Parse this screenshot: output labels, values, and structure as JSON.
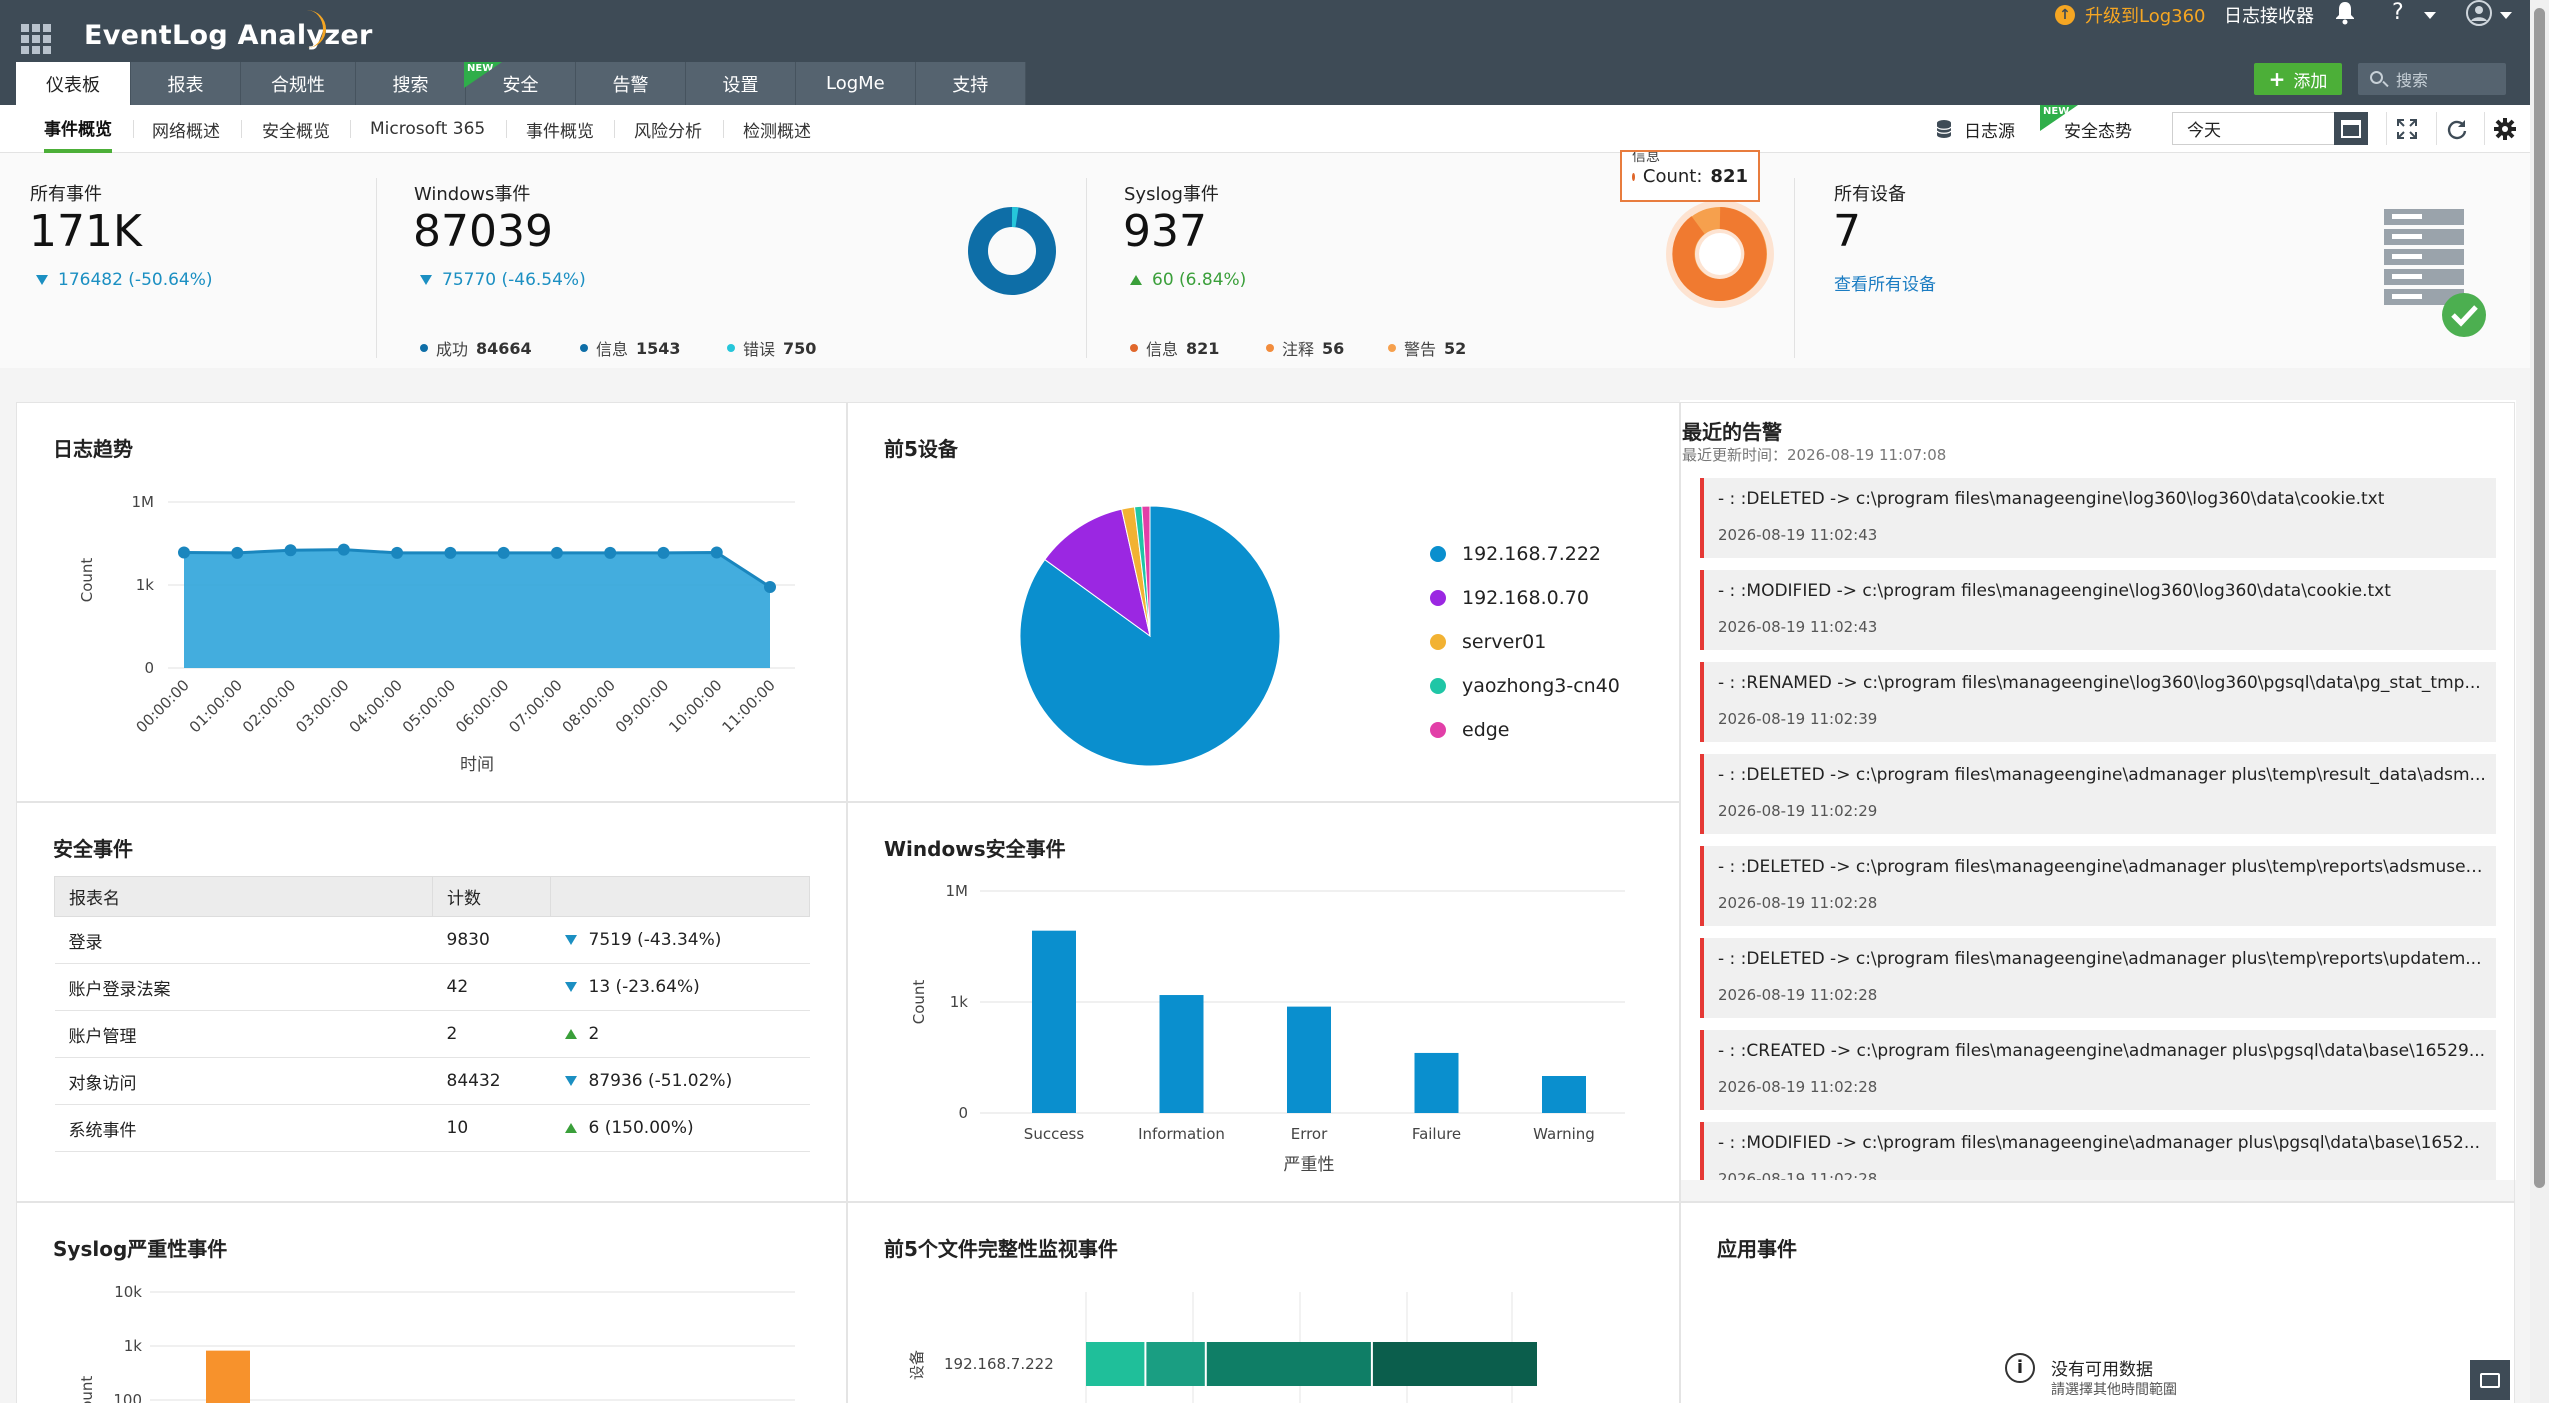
{
  "app": {
    "brand": "EventLog Analyzer",
    "upgrade": "升级到Log360",
    "collector": "日志接收器",
    "help": "?"
  },
  "nav": {
    "tabs": [
      "仪表板",
      "报表",
      "合规性",
      "搜索",
      "安全",
      "告警",
      "设置",
      "LogMe",
      "支持"
    ],
    "new_badge": "NEW",
    "add_label": "添加",
    "search_placeholder": "搜索"
  },
  "subnav": {
    "tabs": [
      "事件概览",
      "网络概述",
      "安全概览",
      "Microsoft 365",
      "事件概览",
      "风险分析",
      "检测概述"
    ],
    "log_source": "日志源",
    "security_posture": "安全态势",
    "new_badge": "NEW",
    "date_value": "今天"
  },
  "summary": {
    "all_events": {
      "title": "所有事件",
      "value": "171K",
      "delta": "176482 (-50.64%)"
    },
    "windows": {
      "title": "Windows事件",
      "value": "87039",
      "delta": "75770 (-46.54%)",
      "legend": [
        {
          "label": "成功",
          "value": "84664",
          "color": "#0e6ea7"
        },
        {
          "label": "信息",
          "value": "1543",
          "color": "#0e6ea7"
        },
        {
          "label": "错误",
          "value": "750",
          "color": "#26c6da"
        }
      ]
    },
    "syslog": {
      "title": "Syslog事件",
      "value": "937",
      "delta": "60 (6.84%)",
      "legend": [
        {
          "label": "信息",
          "value": "821",
          "color": "#e0672b"
        },
        {
          "label": "注释",
          "value": "56",
          "color": "#f28c3c"
        },
        {
          "label": "警告",
          "value": "52",
          "color": "#f6a04d"
        }
      ],
      "tooltip_title": "信息",
      "tooltip_label": "Count:",
      "tooltip_value": "821"
    },
    "devices": {
      "title": "所有设备",
      "value": "7",
      "link": "查看所有设备"
    }
  },
  "log_trend": {
    "title": "日志趋势",
    "ylabel": "Count",
    "xlabel": "时间",
    "yticks": [
      "1M",
      "1k",
      "0"
    ],
    "chart_data": {
      "type": "area",
      "x": [
        "00:00:00",
        "01:00:00",
        "02:00:00",
        "03:00:00",
        "04:00:00",
        "05:00:00",
        "06:00:00",
        "07:00:00",
        "08:00:00",
        "09:00:00",
        "10:00:00",
        "11:00:00"
      ],
      "series": [
        {
          "values": [
            15000,
            14500,
            18000,
            19000,
            14500,
            14500,
            14500,
            14500,
            14500,
            14500,
            15000,
            850
          ]
        }
      ],
      "yscale": "log",
      "ylim": [
        0,
        1000000
      ]
    }
  },
  "top5_devices": {
    "title": "前5设备",
    "chart_data": {
      "type": "pie",
      "categories": [
        "192.168.7.222",
        "192.168.0.70",
        "server01",
        "yaozhong3-cn40",
        "edge"
      ],
      "values": [
        85.0,
        11.5,
        1.6,
        0.9,
        1.0
      ],
      "colors": [
        "#0a8fce",
        "#9b27e2",
        "#f2b233",
        "#1fc6a6",
        "#e23fa8"
      ]
    }
  },
  "alerts": {
    "title": "最近的告警",
    "subtitle": "最近更新时间：2026-08-19 11:07:08",
    "items": [
      {
        "msg": "- : :DELETED -> c:\\program files\\manageengine\\log360\\log360\\data\\cookie.txt",
        "time": "2026-08-19 11:02:43"
      },
      {
        "msg": "- : :MODIFIED -> c:\\program files\\manageengine\\log360\\log360\\data\\cookie.txt",
        "time": "2026-08-19 11:02:43"
      },
      {
        "msg": "- : :RENAMED -> c:\\program files\\manageengine\\log360\\log360\\pgsql\\data\\pg_stat_tmp...",
        "time": "2026-08-19 11:02:39"
      },
      {
        "msg": "- : :DELETED -> c:\\program files\\manageengine\\admanager plus\\temp\\result_data\\adsm...",
        "time": "2026-08-19 11:02:29"
      },
      {
        "msg": "- : :DELETED -> c:\\program files\\manageengine\\admanager plus\\temp\\reports\\adsmuser...",
        "time": "2026-08-19 11:02:28"
      },
      {
        "msg": "- : :DELETED -> c:\\program files\\manageengine\\admanager plus\\temp\\reports\\updatem...",
        "time": "2026-08-19 11:02:28"
      },
      {
        "msg": "- : :CREATED -> c:\\program files\\manageengine\\admanager plus\\pgsql\\data\\base\\16529...",
        "time": "2026-08-19 11:02:28"
      },
      {
        "msg": "- : :MODIFIED -> c:\\program files\\manageengine\\admanager plus\\pgsql\\data\\base\\1652...",
        "time": "2026-08-19 11:02:28"
      }
    ]
  },
  "security_events": {
    "title": "安全事件",
    "headers": [
      "报表名",
      "计数"
    ],
    "rows": [
      {
        "name": "登录",
        "count": "9830",
        "delta": "7519 (-43.34%)",
        "dir": "down"
      },
      {
        "name": "账户登录法案",
        "count": "42",
        "delta": "13 (-23.64%)",
        "dir": "down"
      },
      {
        "name": "账户管理",
        "count": "2",
        "delta": "2",
        "dir": "up"
      },
      {
        "name": "对象访问",
        "count": "84432",
        "delta": "87936 (-51.02%)",
        "dir": "down"
      },
      {
        "name": "系统事件",
        "count": "10",
        "delta": "6 (150.00%)",
        "dir": "up"
      }
    ]
  },
  "win_security": {
    "title": "Windows安全事件",
    "ylabel": "Count",
    "xlabel": "严重性",
    "yticks": [
      "1M",
      "1k",
      "0"
    ],
    "chart_data": {
      "type": "bar",
      "categories": [
        "Success",
        "Information",
        "Error",
        "Failure",
        "Warning"
      ],
      "values": [
        84664,
        1543,
        750,
        42,
        10
      ],
      "yscale": "log",
      "ylim": [
        0,
        1000000
      ]
    }
  },
  "syslog_severity": {
    "title": "Syslog严重性事件",
    "yticks": [
      "10k",
      "1k",
      "100"
    ],
    "ylabel": "Count",
    "chart_data": {
      "type": "bar",
      "categories": [
        "信息"
      ],
      "values": [
        821
      ],
      "yscale": "log"
    }
  },
  "fim_events": {
    "title": "前5个文件完整性监视事件",
    "ylabel": "设备",
    "device": "192.168.7.222",
    "chart_data": {
      "type": "bar",
      "categories": [
        "192.168.7.222"
      ],
      "series": [
        {
          "values": [
            12
          ]
        },
        {
          "values": [
            12
          ]
        },
        {
          "values": [
            33
          ]
        },
        {
          "values": [
            33
          ]
        }
      ]
    },
    "colors": [
      "#1fbf9a",
      "#1a9e82",
      "#0f7e66",
      "#0b5e4c"
    ]
  },
  "app_events": {
    "title": "应用事件",
    "empty_title": "没有可用数据",
    "empty_sub": "請選擇其他時間範圍"
  }
}
